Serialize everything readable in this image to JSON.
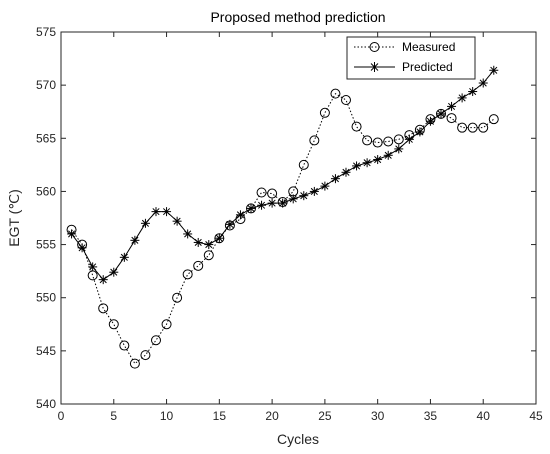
{
  "chart_data": {
    "type": "line",
    "title": "Proposed method prediction",
    "xlabel": "Cycles",
    "ylabel": "EGT (℃)",
    "xlim": [
      0,
      45
    ],
    "ylim": [
      540,
      575
    ],
    "xticks": [
      "0",
      "5",
      "10",
      "15",
      "20",
      "25",
      "30",
      "35",
      "40",
      "45"
    ],
    "yticks": [
      "540",
      "545",
      "550",
      "555",
      "560",
      "565",
      "570",
      "575"
    ],
    "grid": false,
    "legend_position": "top-right",
    "x": [
      1,
      2,
      3,
      4,
      5,
      6,
      7,
      8,
      9,
      10,
      11,
      12,
      13,
      14,
      15,
      16,
      17,
      18,
      19,
      20,
      21,
      22,
      23,
      24,
      25,
      26,
      27,
      28,
      29,
      30,
      31,
      32,
      33,
      34,
      35,
      36,
      37,
      38,
      39,
      40,
      41
    ],
    "series": [
      {
        "name": "Measured",
        "marker": "circle",
        "line_style": "dotted",
        "color": "#000000",
        "values": [
          556.4,
          555.0,
          552.1,
          549.0,
          547.5,
          545.5,
          543.8,
          544.6,
          546.0,
          547.5,
          550.0,
          552.2,
          553.0,
          554.0,
          555.6,
          556.8,
          557.4,
          558.4,
          559.9,
          559.8,
          559.0,
          560.0,
          562.5,
          564.8,
          567.4,
          569.2,
          568.6,
          566.1,
          564.8,
          564.6,
          564.7,
          564.9,
          565.3,
          565.8,
          566.8,
          567.3,
          566.9,
          566.0,
          566.0,
          566.0,
          566.8
        ]
      },
      {
        "name": "Predicted",
        "marker": "asterisk",
        "line_style": "solid",
        "color": "#000000",
        "values": [
          556.0,
          554.7,
          552.9,
          551.7,
          552.4,
          553.8,
          555.4,
          557.0,
          558.1,
          558.1,
          557.2,
          556.0,
          555.2,
          555.0,
          555.6,
          556.9,
          557.8,
          558.4,
          558.7,
          558.9,
          558.9,
          559.3,
          559.6,
          560.0,
          560.5,
          561.2,
          561.8,
          562.4,
          562.7,
          563.0,
          563.4,
          564.0,
          564.9,
          565.6,
          566.6,
          567.3,
          568.0,
          568.8,
          569.4,
          570.2,
          571.4
        ]
      }
    ]
  }
}
